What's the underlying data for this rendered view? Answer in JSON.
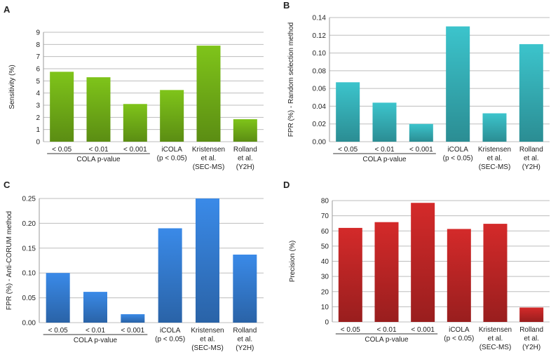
{
  "chart_data": [
    {
      "panel": "A",
      "type": "bar",
      "ylabel": "Sensitivity (%)",
      "ylim": [
        0,
        9
      ],
      "ticks": [
        "0",
        "1",
        "2",
        "3",
        "4",
        "5",
        "6",
        "7",
        "8",
        "9"
      ],
      "categories": [
        [
          "< 0.05"
        ],
        [
          "< 0.01"
        ],
        [
          "< 0.001"
        ],
        [
          "iCOLA",
          "(p < 0.05)"
        ],
        [
          "Kristensen",
          "et al.",
          "(SEC-MS)"
        ],
        [
          "Rolland",
          "et al.",
          "(Y2H)"
        ]
      ],
      "group_label": "COLA  p-value",
      "values": [
        5.75,
        5.3,
        3.1,
        4.25,
        7.9,
        1.85
      ],
      "color": "#7fc41a"
    },
    {
      "panel": "B",
      "type": "bar",
      "ylabel": "FPR (%) - Random selection method",
      "ylim": [
        0,
        0.14
      ],
      "ticks": [
        "0.00",
        "0.02",
        "0.04",
        "0.06",
        "0.08",
        "0.10",
        "0.12",
        "0.14"
      ],
      "categories": [
        [
          "< 0.05"
        ],
        [
          "< 0.01"
        ],
        [
          "< 0.001"
        ],
        [
          "iCOLA",
          "(p < 0.05)"
        ],
        [
          "Kristensen",
          "et al.",
          "(SEC-MS)"
        ],
        [
          "Rolland",
          "et al.",
          "(Y2H)"
        ]
      ],
      "group_label": "COLA  p-value",
      "values": [
        0.067,
        0.044,
        0.02,
        0.13,
        0.032,
        0.11
      ],
      "color": "#3cc4cc"
    },
    {
      "panel": "C",
      "type": "bar",
      "ylabel": "FPR (%) - Anti-CORUM method",
      "ylim": [
        0,
        0.25
      ],
      "ticks": [
        "0.00",
        "0.05",
        "0.10",
        "0.15",
        "0.20",
        "0.25"
      ],
      "categories": [
        [
          "< 0.05"
        ],
        [
          "< 0.01"
        ],
        [
          "< 0.001"
        ],
        [
          "iCOLA",
          "(p < 0.05)"
        ],
        [
          "Kristensen",
          "et al.",
          "(SEC-MS)"
        ],
        [
          "Rolland",
          "et al.",
          "(Y2H)"
        ]
      ],
      "group_label": "COLA  p-value",
      "values": [
        0.1,
        0.062,
        0.017,
        0.19,
        0.25,
        0.137
      ],
      "color": "#3a8ae8"
    },
    {
      "panel": "D",
      "type": "bar",
      "ylabel": "Precision (%)",
      "ylim": [
        0,
        80
      ],
      "ticks": [
        "0",
        "10",
        "20",
        "30",
        "40",
        "50",
        "60",
        "70",
        "80"
      ],
      "categories": [
        [
          "< 0.05"
        ],
        [
          "< 0.01"
        ],
        [
          "< 0.001"
        ],
        [
          "iCOLA",
          "(p < 0.05)"
        ],
        [
          "Kristensen",
          "et al.",
          "(SEC-MS)"
        ],
        [
          "Rolland",
          "et al.",
          "(Y2H)"
        ]
      ],
      "group_label": "COLA  p-value",
      "values": [
        62,
        65.8,
        78.5,
        61.3,
        64.7,
        9.5
      ],
      "color": "#d42a2a"
    }
  ]
}
